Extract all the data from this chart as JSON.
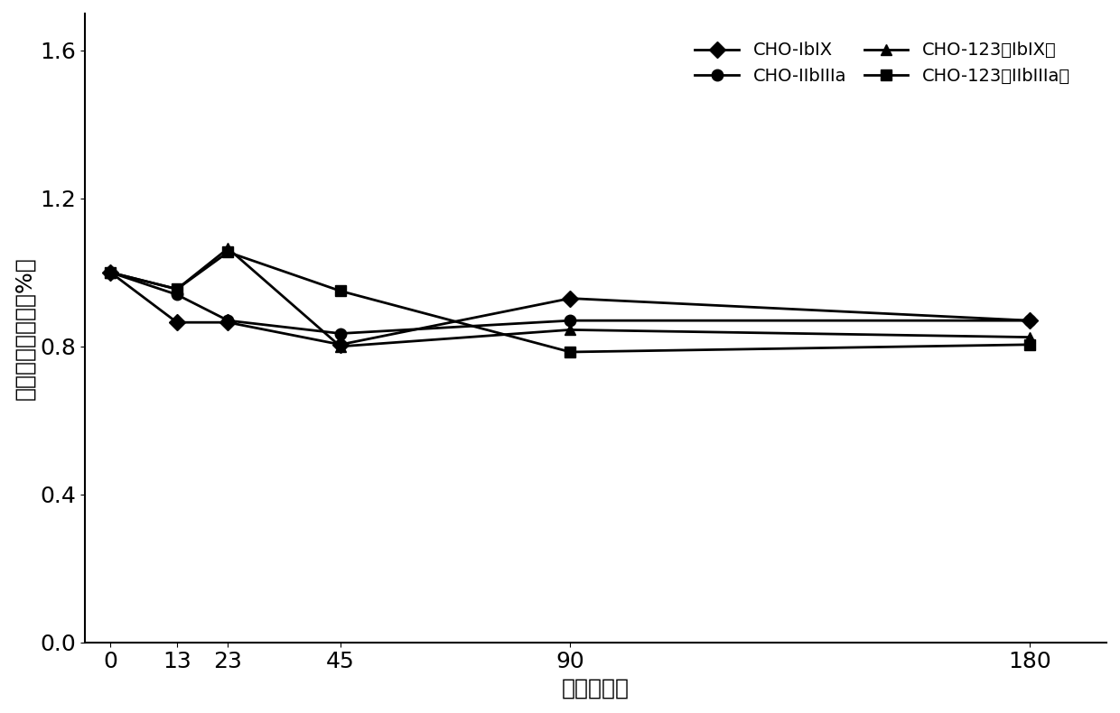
{
  "x": [
    0,
    13,
    23,
    45,
    90,
    180
  ],
  "series": [
    {
      "label": "CHO-IbIX",
      "y": [
        1.0,
        0.865,
        0.865,
        0.805,
        0.93,
        0.87
      ],
      "marker": "D",
      "color": "#000000",
      "markersize": 9,
      "linewidth": 2
    },
    {
      "label": "CHO-IIbIIIa",
      "y": [
        1.0,
        0.94,
        0.87,
        0.835,
        0.87,
        0.87
      ],
      "marker": "o",
      "color": "#000000",
      "markersize": 9,
      "linewidth": 2
    },
    {
      "label": "CHO-123（IbIX）",
      "y": [
        1.0,
        0.955,
        1.065,
        0.8,
        0.845,
        0.825
      ],
      "marker": "^",
      "color": "#000000",
      "markersize": 9,
      "linewidth": 2
    },
    {
      "label": "CHO-123（IIbIIIa）",
      "y": [
        1.0,
        0.955,
        1.055,
        0.95,
        0.785,
        0.805
      ],
      "marker": "s",
      "color": "#000000",
      "markersize": 9,
      "linewidth": 2
    }
  ],
  "xlabel": "时间（天）",
  "ylabel": "蛋白表达下降率（%）",
  "xlim": [
    -5,
    195
  ],
  "ylim": [
    0.0,
    1.7
  ],
  "yticks": [
    0.0,
    0.4,
    0.8,
    1.2,
    1.6
  ],
  "xticks": [
    0,
    13,
    23,
    45,
    90,
    180
  ],
  "title_fontsize": 16,
  "label_fontsize": 18,
  "tick_fontsize": 18,
  "legend_fontsize": 14,
  "background_color": "#ffffff"
}
